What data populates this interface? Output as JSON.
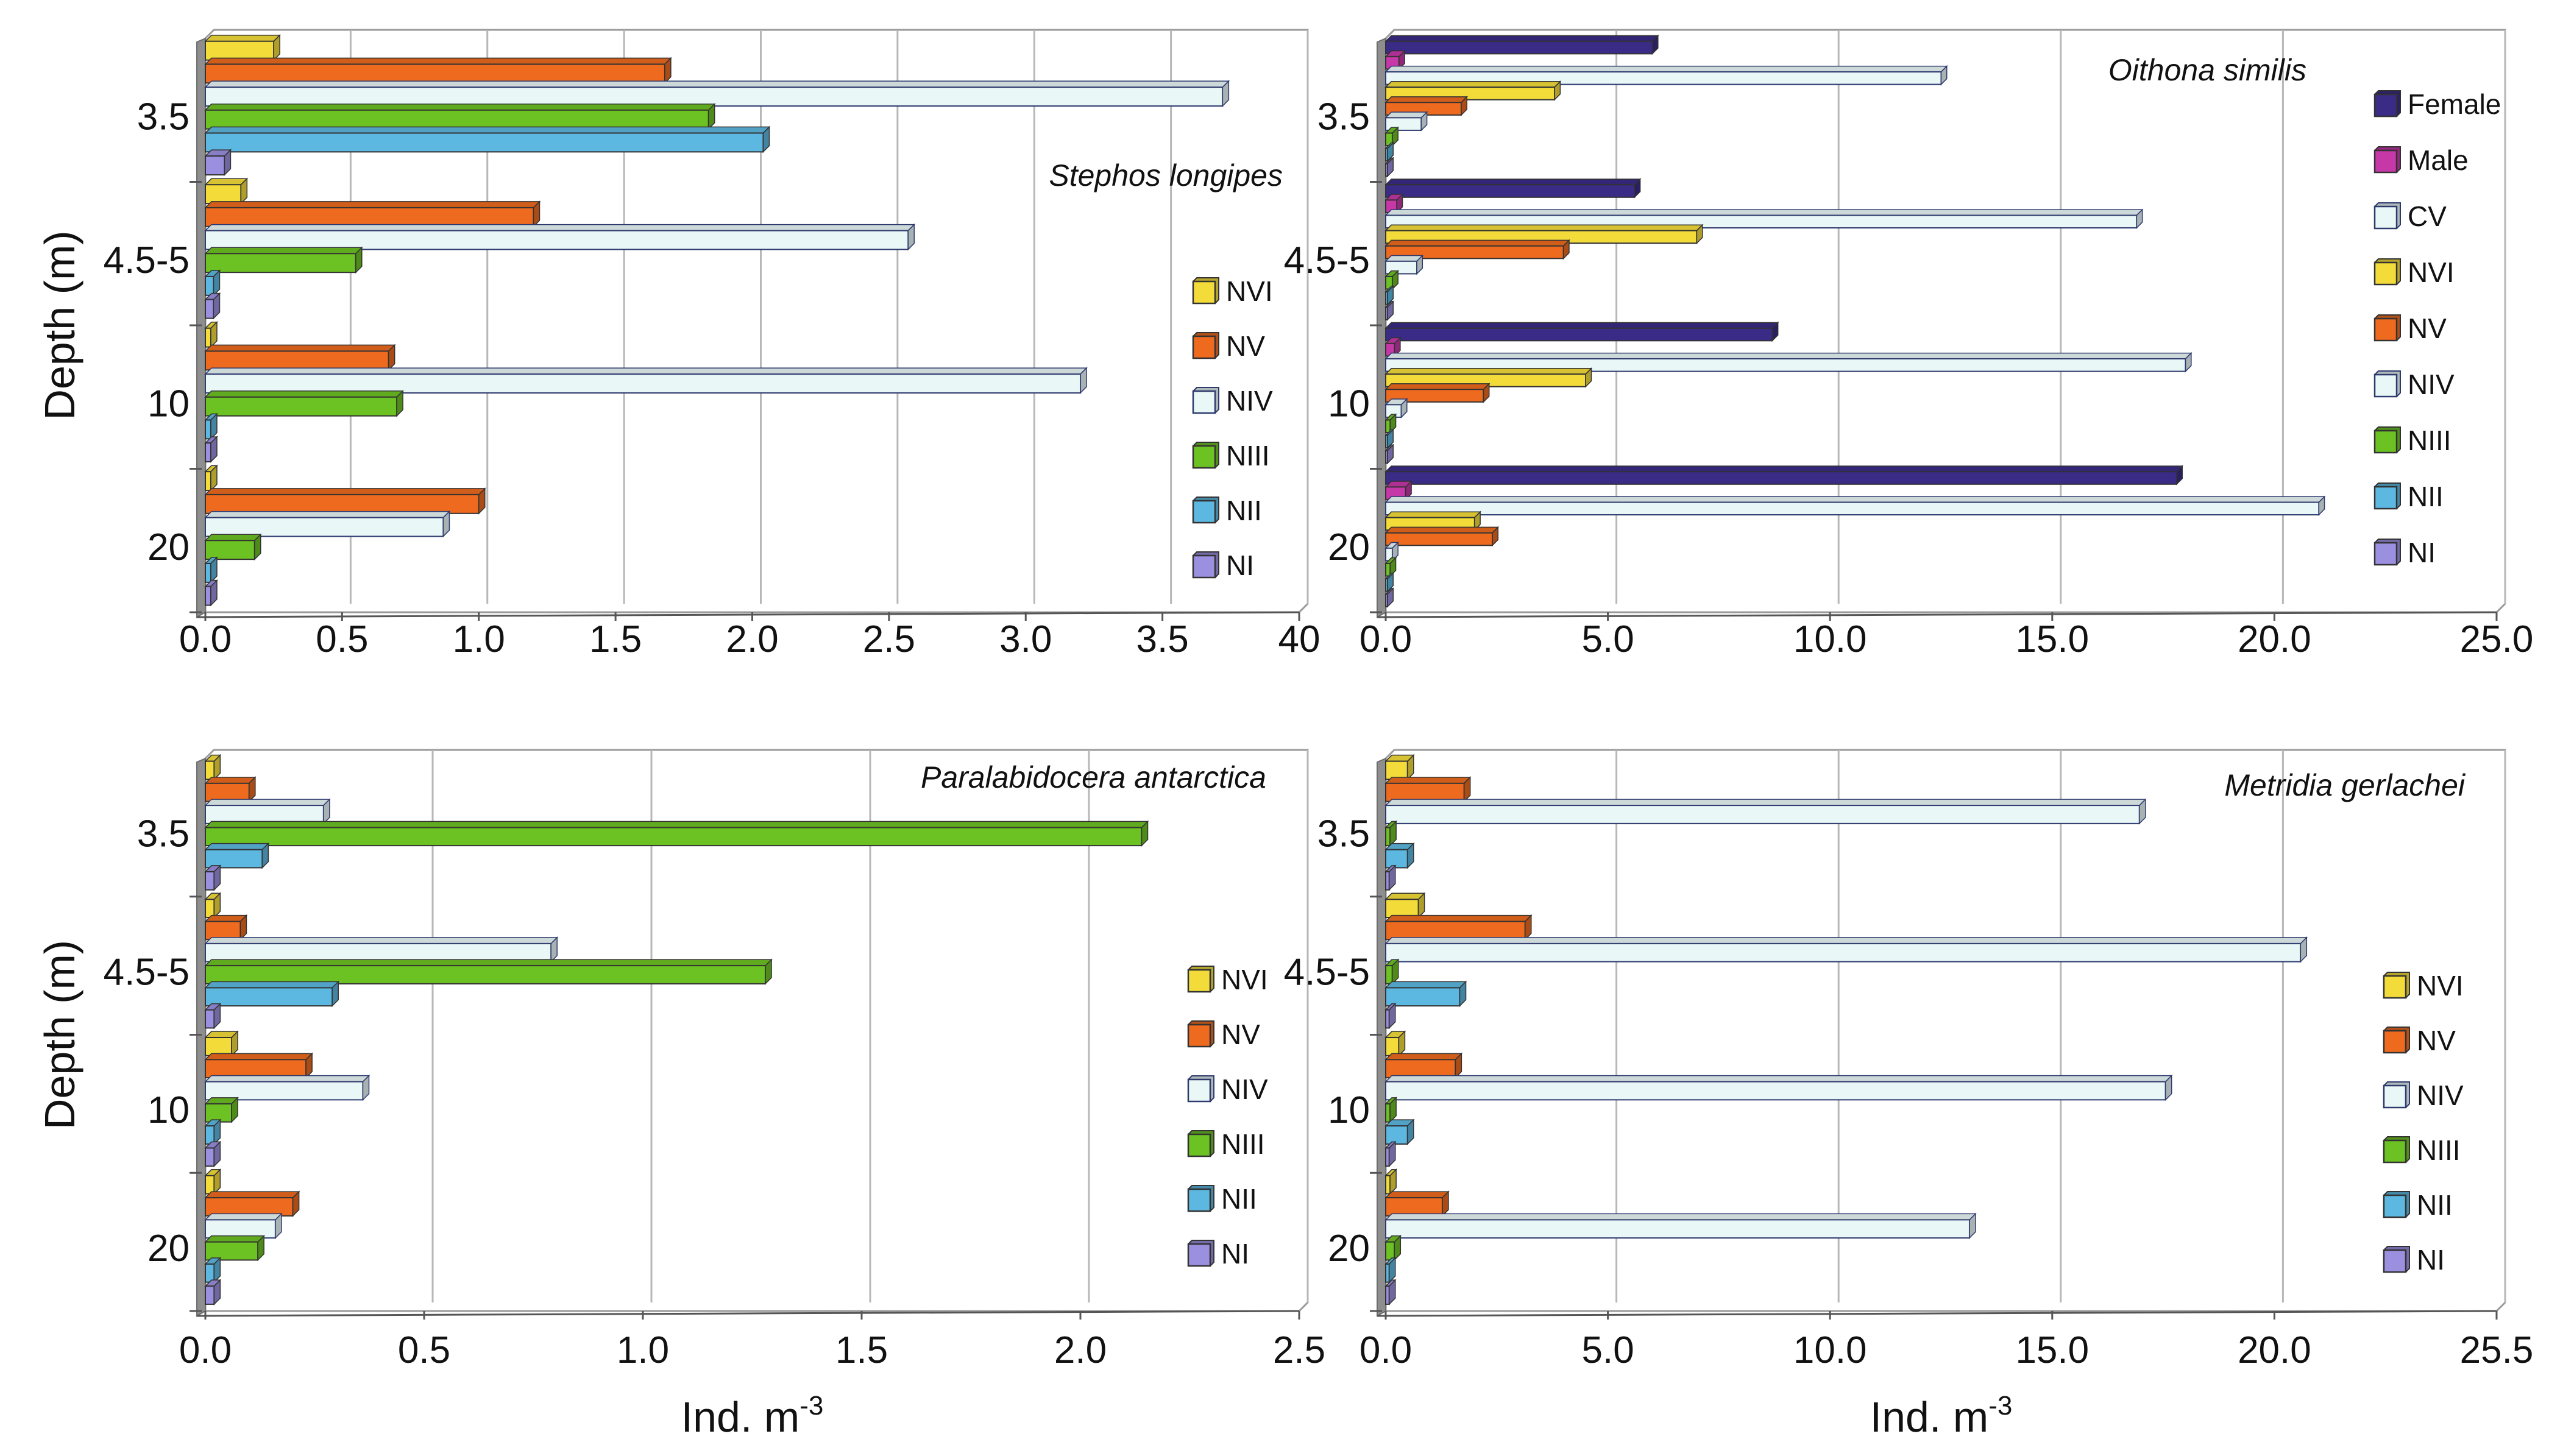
{
  "chart_data": [
    {
      "type": "bar",
      "orientation": "horizontal",
      "title": "Stephos longipes",
      "ylabel": "Depth (m)",
      "xlabel": "",
      "categories": [
        "3.5",
        "4.5-5",
        "10",
        "20"
      ],
      "xlim": [
        0,
        4.0
      ],
      "xticks": [
        "0.0",
        "0.5",
        "1.0",
        "1.5",
        "2.0",
        "2.5",
        "3.0",
        "3.5",
        "40"
      ],
      "series": [
        {
          "name": "NVI",
          "color": "#f3dc3a",
          "values": [
            0.25,
            0.13,
            0.02,
            0.02
          ]
        },
        {
          "name": "NV",
          "color": "#ee6a1e",
          "values": [
            1.68,
            1.2,
            0.67,
            1.0
          ]
        },
        {
          "name": "NIV",
          "color": "#e9f7f7",
          "values": [
            3.72,
            2.57,
            3.2,
            0.87
          ]
        },
        {
          "name": "NIII",
          "color": "#6cc123",
          "values": [
            1.84,
            0.55,
            0.7,
            0.18
          ]
        },
        {
          "name": "NII",
          "color": "#5cb8e0",
          "values": [
            2.04,
            0.03,
            0.02,
            0.02
          ]
        },
        {
          "name": "NI",
          "color": "#9b8fe0",
          "values": [
            0.07,
            0.03,
            0.02,
            0.02
          ]
        }
      ]
    },
    {
      "type": "bar",
      "orientation": "horizontal",
      "title": "Oithona similis",
      "ylabel": "",
      "xlabel": "",
      "categories": [
        "3.5",
        "4.5-5",
        "10",
        "20"
      ],
      "xlim": [
        0,
        25
      ],
      "xticks": [
        "0.0",
        "5.0",
        "10.0",
        "15.0",
        "20.0",
        "25.0"
      ],
      "series": [
        {
          "name": "Female",
          "color": "#3a2b86",
          "values": [
            6.0,
            5.6,
            8.7,
            17.8
          ]
        },
        {
          "name": "Male",
          "color": "#c637a8",
          "values": [
            0.3,
            0.25,
            0.2,
            0.45
          ]
        },
        {
          "name": "CV",
          "color": "#e9f7f7",
          "values": [
            12.5,
            16.9,
            18.0,
            21.0
          ]
        },
        {
          "name": "NVI",
          "color": "#f3dc3a",
          "values": [
            3.8,
            7.0,
            4.5,
            2.0
          ]
        },
        {
          "name": "NV",
          "color": "#ee6a1e",
          "values": [
            1.7,
            4.0,
            2.2,
            2.4
          ]
        },
        {
          "name": "NIV",
          "color": "#e9f7f7",
          "values": [
            0.8,
            0.7,
            0.35,
            0.15
          ]
        },
        {
          "name": "NIII",
          "color": "#6cc123",
          "values": [
            0.15,
            0.15,
            0.1,
            0.1
          ]
        },
        {
          "name": "NII",
          "color": "#5cb8e0",
          "values": [
            0,
            0,
            0,
            0
          ]
        },
        {
          "name": "NI",
          "color": "#9b8fe0",
          "values": [
            0,
            0,
            0,
            0
          ]
        }
      ]
    },
    {
      "type": "bar",
      "orientation": "horizontal",
      "title": "Paralabidocera antarctica",
      "ylabel": "Depth (m)",
      "xlabel": "Ind. m",
      "xlabel_sup": "-3",
      "categories": [
        "3.5",
        "4.5-5",
        "10",
        "20"
      ],
      "xlim": [
        0,
        2.5
      ],
      "xticks": [
        "0.0",
        "0.5",
        "1.0",
        "1.5",
        "2.0",
        "2.5"
      ],
      "series": [
        {
          "name": "NVI",
          "color": "#f3dc3a",
          "values": [
            0.02,
            0.02,
            0.06,
            0.02
          ]
        },
        {
          "name": "NV",
          "color": "#ee6a1e",
          "values": [
            0.1,
            0.08,
            0.23,
            0.2
          ]
        },
        {
          "name": "NIV",
          "color": "#e9f7f7",
          "values": [
            0.27,
            0.79,
            0.36,
            0.16
          ]
        },
        {
          "name": "NIII",
          "color": "#6cc123",
          "values": [
            2.14,
            1.28,
            0.06,
            0.12
          ]
        },
        {
          "name": "NII",
          "color": "#5cb8e0",
          "values": [
            0.13,
            0.29,
            0.02,
            0.02
          ]
        },
        {
          "name": "NI",
          "color": "#9b8fe0",
          "values": [
            0.02,
            0.02,
            0.02,
            0.02
          ]
        }
      ]
    },
    {
      "type": "bar",
      "orientation": "horizontal",
      "title": "Metridia gerlachei",
      "ylabel": "",
      "xlabel": "Ind. m",
      "xlabel_sup": "-3",
      "categories": [
        "3.5",
        "4.5-5",
        "10",
        "20"
      ],
      "xlim": [
        0,
        25.5
      ],
      "xticks": [
        "0.0",
        "5.0",
        "10.0",
        "15.0",
        "20.0",
        "25.5"
      ],
      "series": [
        {
          "name": "NVI",
          "color": "#f3dc3a",
          "values": [
            0.5,
            0.75,
            0.3,
            0.1
          ]
        },
        {
          "name": "NV",
          "color": "#ee6a1e",
          "values": [
            1.8,
            3.2,
            1.6,
            1.3
          ]
        },
        {
          "name": "NIV",
          "color": "#e9f7f7",
          "values": [
            17.3,
            21.0,
            17.9,
            13.4
          ]
        },
        {
          "name": "NIII",
          "color": "#6cc123",
          "values": [
            0.1,
            0.15,
            0.1,
            0.2
          ]
        },
        {
          "name": "NII",
          "color": "#5cb8e0",
          "values": [
            0.5,
            1.7,
            0.5,
            0.08
          ]
        },
        {
          "name": "NI",
          "color": "#9b8fe0",
          "values": [
            0.08,
            0.08,
            0.08,
            0.08
          ]
        }
      ]
    }
  ]
}
